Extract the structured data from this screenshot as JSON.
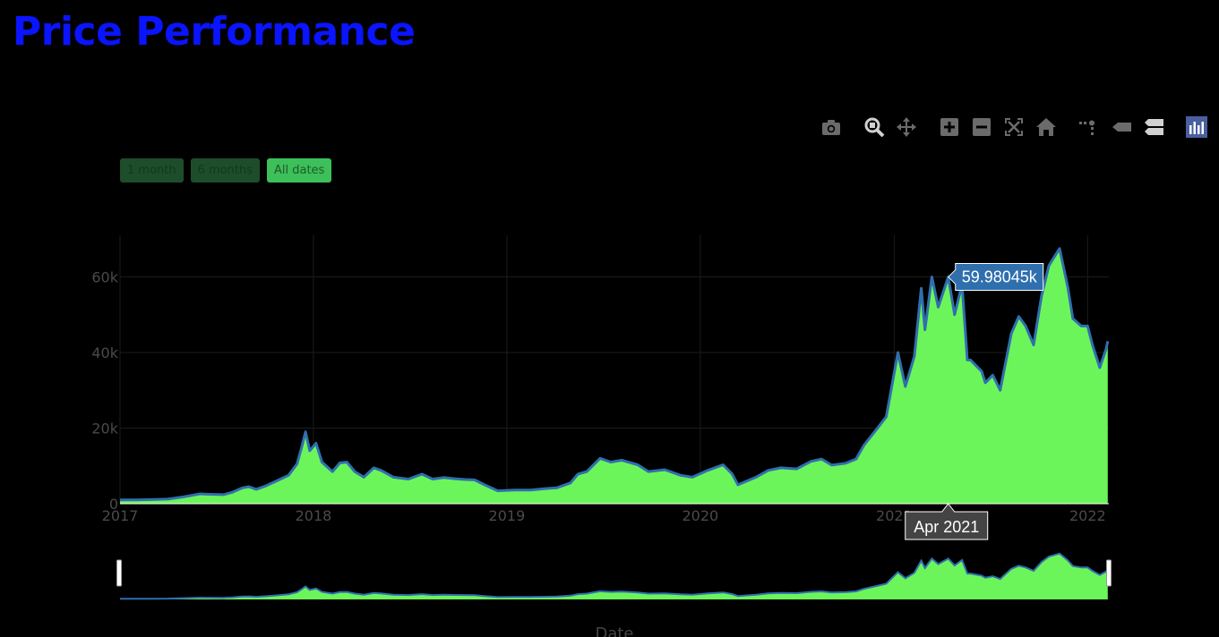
{
  "page": {
    "title": "Price Performance"
  },
  "colors": {
    "title": "#0a14ff",
    "fill": "#6cf55a",
    "line": "#2f6fae",
    "grid": "#1c1c1c",
    "tick": "#4a4a4a",
    "hover_bg": "#2f6fae",
    "modebar_icon": "#6b6b6b",
    "modebar_active": "#4a5f9e"
  },
  "modebar": [
    {
      "name": "camera-icon",
      "label": "Download plot as a png"
    },
    {
      "name": "zoom-icon",
      "label": "Zoom"
    },
    {
      "name": "pan-icon",
      "label": "Pan"
    },
    {
      "name": "zoom-in-icon",
      "label": "Zoom in"
    },
    {
      "name": "zoom-out-icon",
      "label": "Zoom out"
    },
    {
      "name": "autoscale-icon",
      "label": "Autoscale"
    },
    {
      "name": "home-icon",
      "label": "Reset axes"
    },
    {
      "name": "spike-lines-icon",
      "label": "Toggle Spike Lines"
    },
    {
      "name": "hover-closest-icon",
      "label": "Show closest data on hover"
    },
    {
      "name": "hover-compare-icon",
      "label": "Compare data on hover"
    },
    {
      "name": "plotly-logo-icon",
      "label": "Produced with Plotly"
    }
  ],
  "range_selector": [
    {
      "label": "1 month",
      "active": false
    },
    {
      "label": "6 months",
      "active": false
    },
    {
      "label": "All dates",
      "active": true
    }
  ],
  "chart_data": {
    "type": "area",
    "title": "",
    "xlabel": "Date",
    "ylabel": "",
    "x_ticks": [
      "2017",
      "2018",
      "2019",
      "2020",
      "2021",
      "2022"
    ],
    "y_ticks": [
      "0",
      "20k",
      "40k",
      "60k"
    ],
    "xlim": [
      "2017-01-01",
      "2022-02-10"
    ],
    "ylim": [
      0,
      71000
    ],
    "grid": true,
    "rangeslider": true,
    "hover": {
      "x_label": "Apr 2021",
      "y_label": "59.98045k",
      "x": "2021-04-13",
      "y": 59980.45
    },
    "series": [
      {
        "x": [
          "2017-01-01",
          "2017-02-01",
          "2017-03-01",
          "2017-04-01",
          "2017-05-01",
          "2017-06-01",
          "2017-06-15",
          "2017-07-15",
          "2017-08-01",
          "2017-08-20",
          "2017-09-01",
          "2017-09-15",
          "2017-10-01",
          "2017-10-20",
          "2017-11-01",
          "2017-11-15",
          "2017-12-01",
          "2017-12-10",
          "2017-12-17",
          "2017-12-25",
          "2018-01-06",
          "2018-01-17",
          "2018-02-06",
          "2018-02-20",
          "2018-03-05",
          "2018-03-20",
          "2018-04-06",
          "2018-04-25",
          "2018-05-10",
          "2018-06-01",
          "2018-06-29",
          "2018-07-25",
          "2018-08-14",
          "2018-09-04",
          "2018-09-25",
          "2018-10-15",
          "2018-11-01",
          "2018-11-20",
          "2018-12-15",
          "2019-01-15",
          "2019-02-15",
          "2019-03-15",
          "2019-04-05",
          "2019-05-01",
          "2019-05-15",
          "2019-06-01",
          "2019-06-26",
          "2019-07-16",
          "2019-08-06",
          "2019-09-05",
          "2019-09-25",
          "2019-10-26",
          "2019-11-25",
          "2019-12-17",
          "2020-01-15",
          "2020-02-13",
          "2020-03-01",
          "2020-03-12",
          "2020-04-15",
          "2020-05-08",
          "2020-06-01",
          "2020-07-01",
          "2020-07-28",
          "2020-08-17",
          "2020-09-05",
          "2020-10-01",
          "2020-10-21",
          "2020-11-05",
          "2020-11-25",
          "2020-12-17",
          "2021-01-08",
          "2021-01-22",
          "2021-02-08",
          "2021-02-21",
          "2021-02-28",
          "2021-03-13",
          "2021-03-25",
          "2021-04-13",
          "2021-04-25",
          "2021-05-09",
          "2021-05-19",
          "2021-05-25",
          "2021-06-15",
          "2021-06-22",
          "2021-07-06",
          "2021-07-20",
          "2021-08-10",
          "2021-08-24",
          "2021-09-06",
          "2021-09-21",
          "2021-10-06",
          "2021-10-20",
          "2021-11-09",
          "2021-11-25",
          "2021-12-04",
          "2021-12-20",
          "2022-01-01",
          "2022-01-10",
          "2022-01-24",
          "2022-02-05",
          "2022-02-08"
        ],
        "values": [
          1000,
          1000,
          1100,
          1200,
          1800,
          2600,
          2500,
          2400,
          3000,
          4200,
          4500,
          3800,
          4600,
          5800,
          6600,
          7500,
          10500,
          15000,
          19000,
          14000,
          16000,
          11000,
          8500,
          10800,
          11000,
          8500,
          7000,
          9500,
          8700,
          7000,
          6500,
          7800,
          6500,
          6900,
          6600,
          6400,
          6300,
          5000,
          3400,
          3600,
          3600,
          4000,
          4200,
          5500,
          7800,
          8500,
          12000,
          11000,
          11500,
          10300,
          8500,
          9000,
          7500,
          7000,
          8800,
          10300,
          7900,
          5000,
          7000,
          8800,
          9500,
          9200,
          11200,
          11800,
          10200,
          10700,
          11800,
          15500,
          19000,
          23000,
          40000,
          31000,
          39000,
          57000,
          46000,
          60000,
          52000,
          59980,
          50000,
          58000,
          38000,
          38000,
          35000,
          32000,
          34000,
          30000,
          45000,
          49500,
          47000,
          42000,
          55000,
          63000,
          67500,
          57000,
          49000,
          47000,
          47000,
          42000,
          36000,
          41000,
          43000
        ]
      }
    ]
  }
}
